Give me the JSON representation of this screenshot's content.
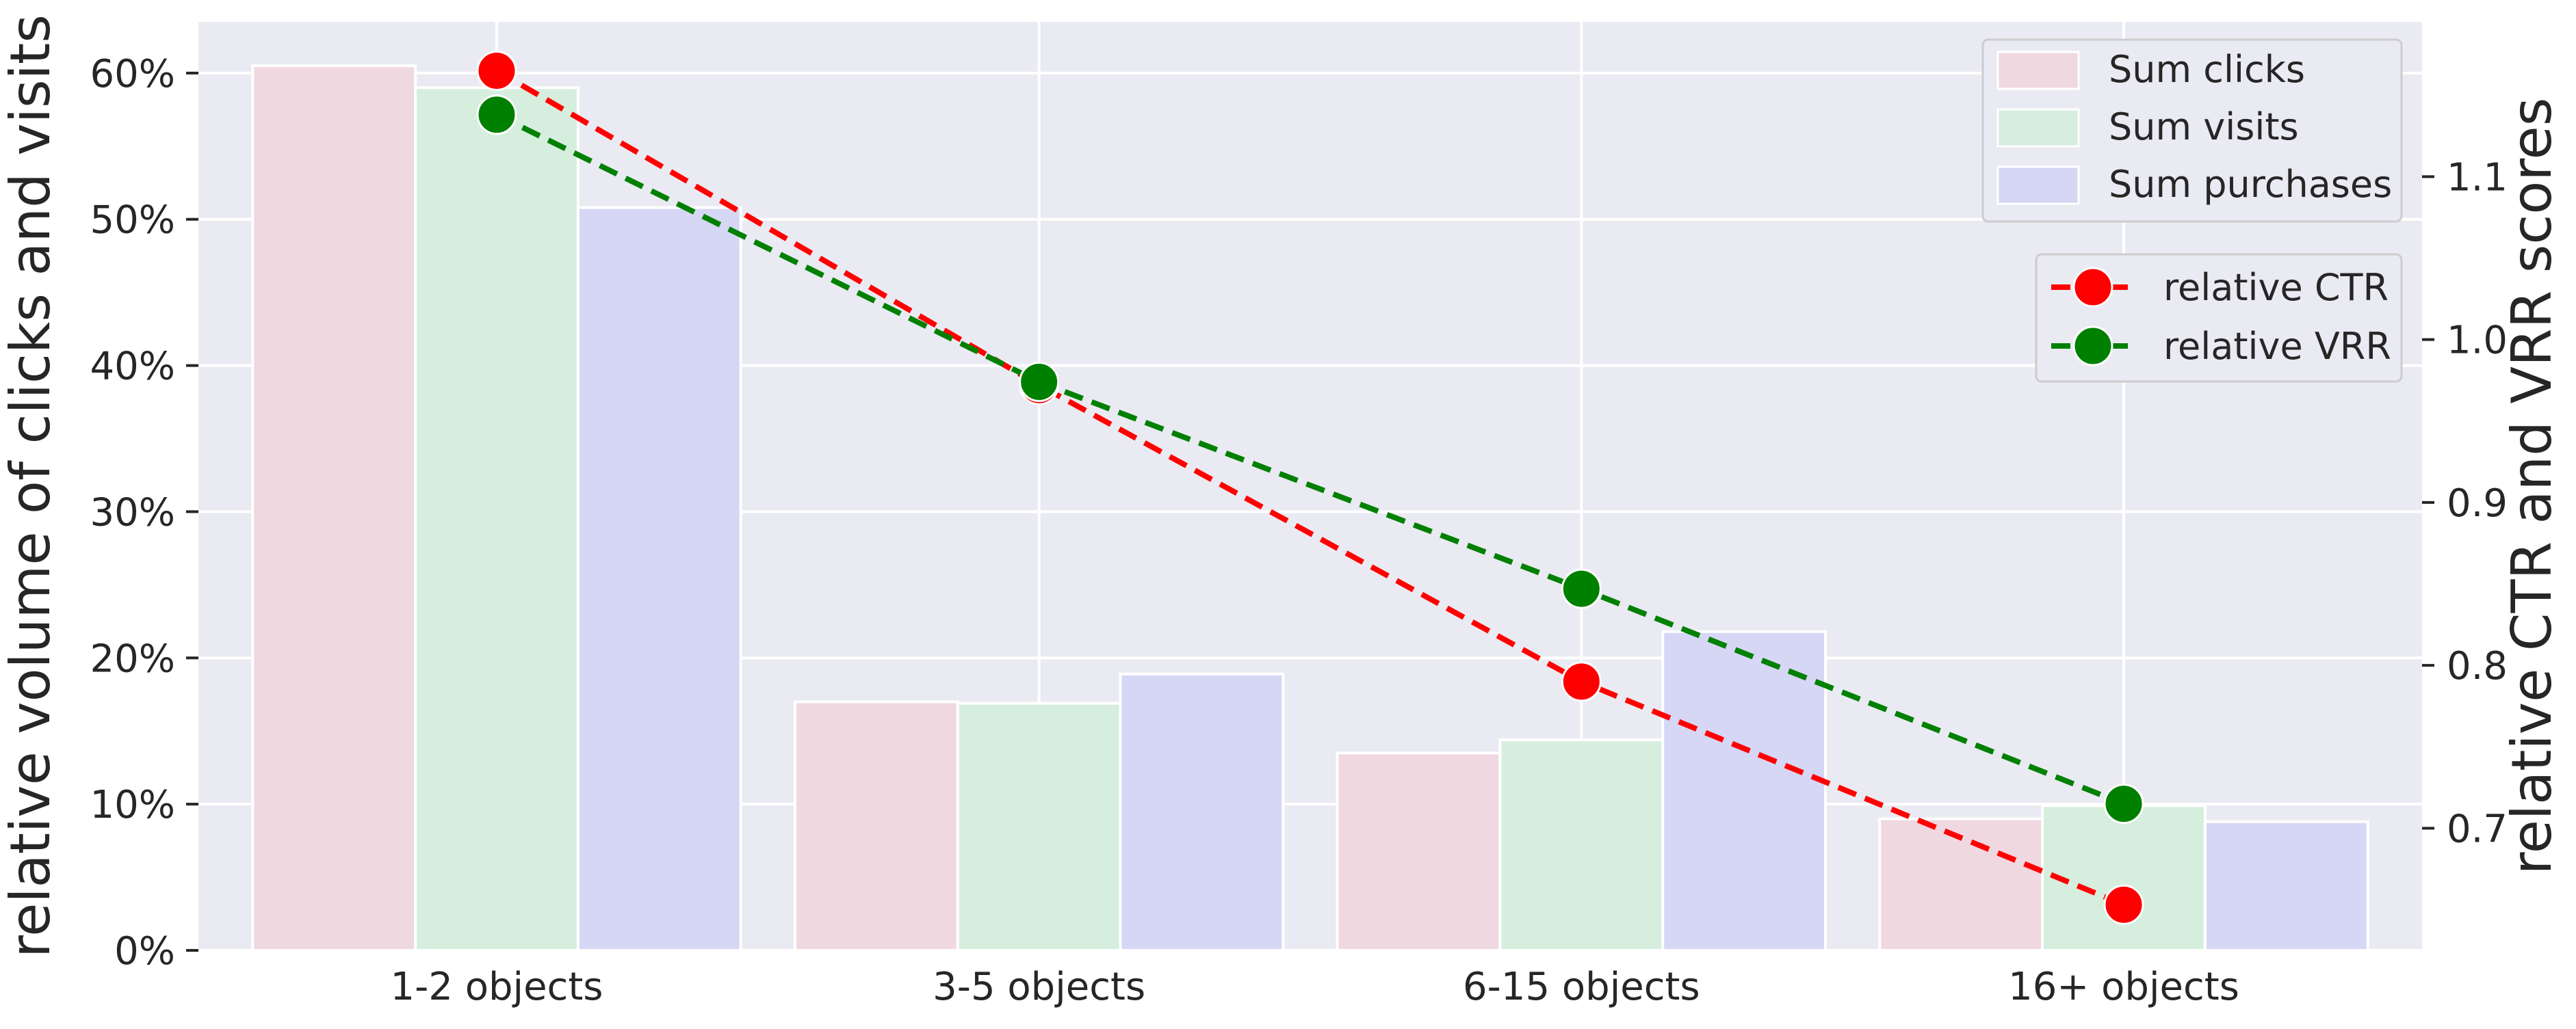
{
  "chart_data": {
    "type": "bar",
    "title": "",
    "categories": [
      "1-2 objects",
      "3-5 objects",
      "6-15 objects",
      "16+ objects"
    ],
    "ylabel": "relative volume of clicks and visits",
    "y2label": "relative CTR and VRR scores",
    "ylim": [
      0,
      0.635
    ],
    "y2lim": [
      0.625,
      1.195
    ],
    "yticks": [
      0,
      0.1,
      0.2,
      0.3,
      0.4,
      0.5,
      0.6
    ],
    "ytick_labels": [
      "0%",
      "10%",
      "20%",
      "30%",
      "40%",
      "50%",
      "60%"
    ],
    "y2ticks": [
      0.7,
      0.8,
      0.9,
      1.0,
      1.1
    ],
    "y2tick_labels": [
      "0.7",
      "0.8",
      "0.9",
      "1.0",
      "1.1"
    ],
    "grid": true,
    "bar_series": [
      {
        "name": "Sum clicks",
        "values": [
          0.605,
          0.17,
          0.135,
          0.09
        ],
        "color": "#f0d8e0"
      },
      {
        "name": "Sum visits",
        "values": [
          0.59,
          0.169,
          0.144,
          0.099
        ],
        "color": "#d6eedd"
      },
      {
        "name": "Sum purchases",
        "values": [
          0.508,
          0.189,
          0.218,
          0.088
        ],
        "color": "#d6d6f5"
      }
    ],
    "line_series": [
      {
        "name": "relative CTR",
        "values": [
          1.165,
          0.972,
          0.79,
          0.653
        ],
        "color": "#ff0000",
        "style": "dashed",
        "marker": "circle"
      },
      {
        "name": "relative VRR",
        "values": [
          1.138,
          0.974,
          0.847,
          0.715
        ],
        "color": "#008000",
        "style": "dashed",
        "marker": "circle"
      }
    ],
    "legend_bars_position": "top-right",
    "legend_lines_position": "upper-right"
  }
}
